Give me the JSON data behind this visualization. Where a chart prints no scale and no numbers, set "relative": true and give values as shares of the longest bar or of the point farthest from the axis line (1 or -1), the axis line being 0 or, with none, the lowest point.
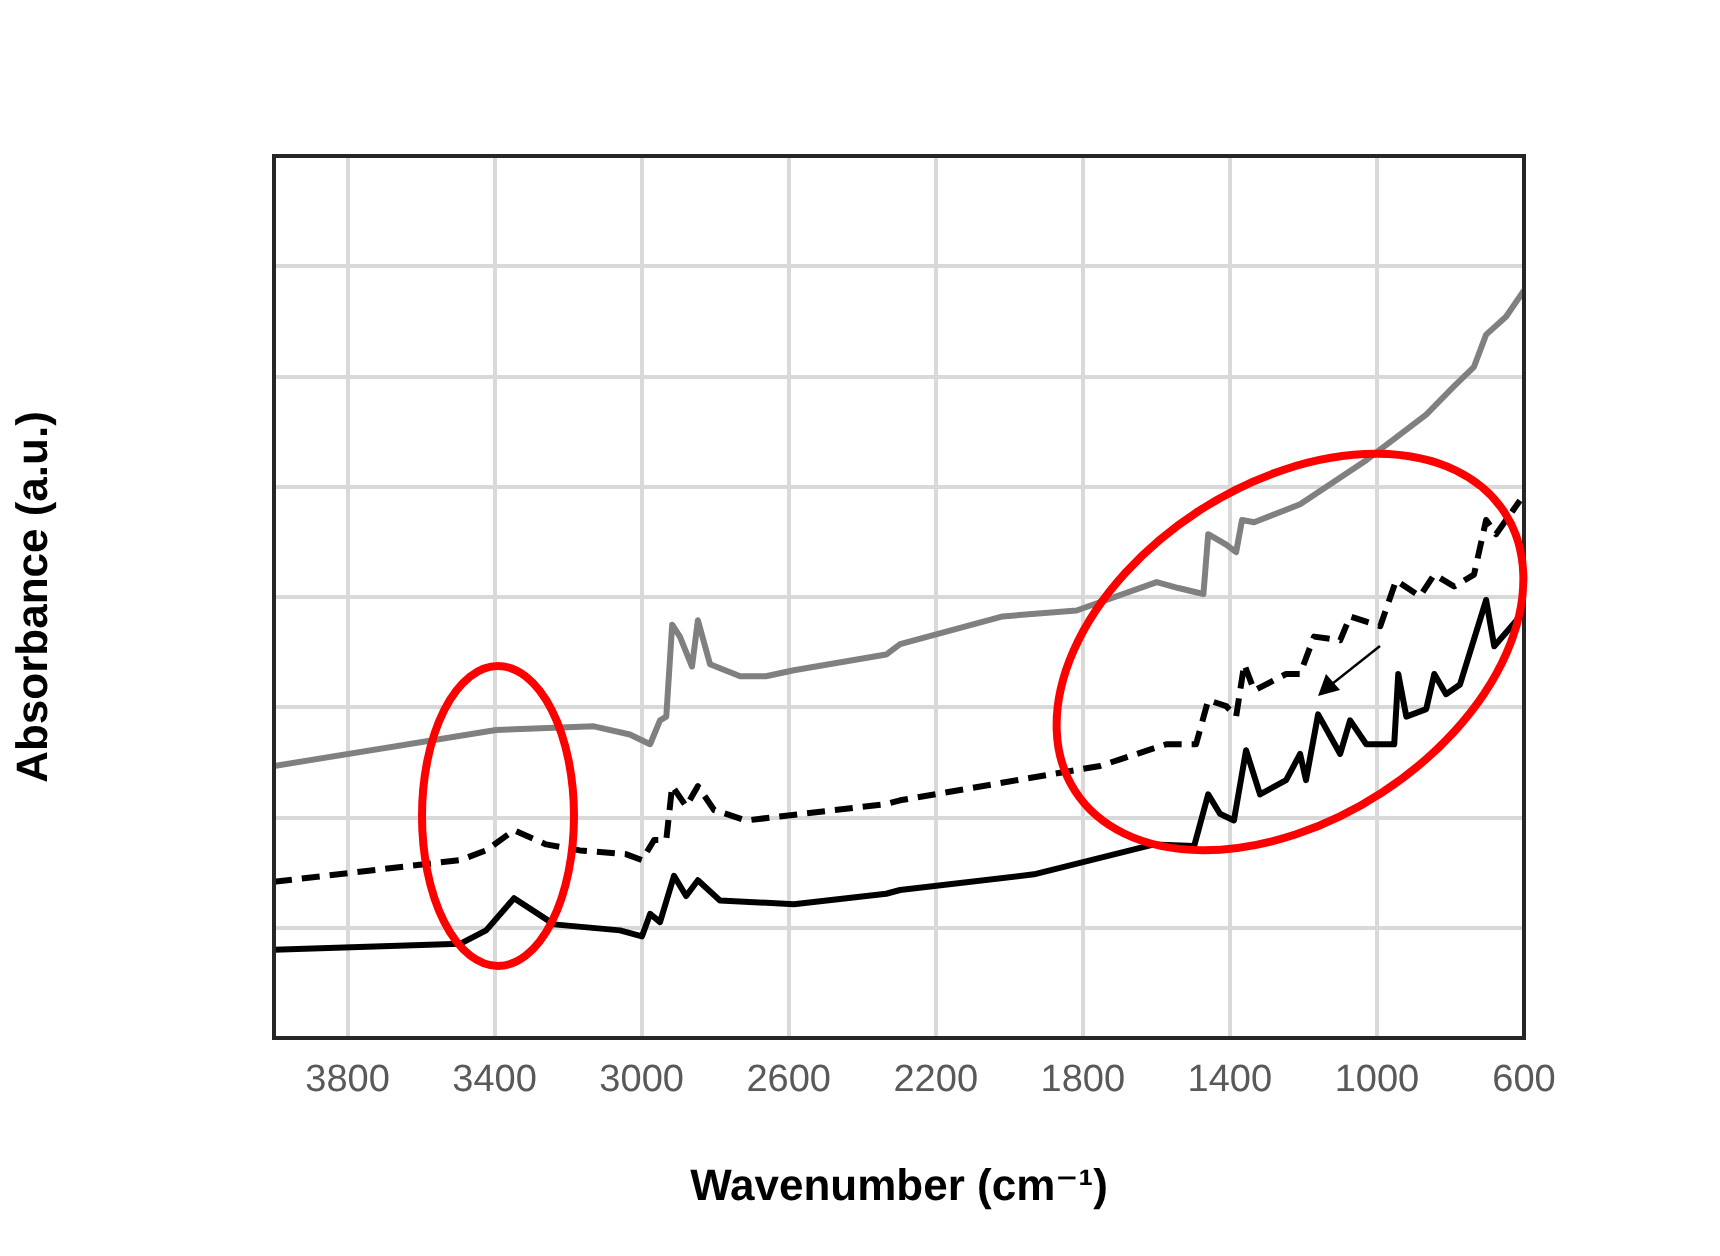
{
  "chart_data": {
    "type": "line",
    "xlabel": "Wavenumber (cm⁻¹)",
    "ylabel": "Absorbance (a.u.)",
    "relative": true,
    "grid": true,
    "marker": "none",
    "xlim": [
      4000,
      600
    ],
    "xticks": [
      3800,
      3400,
      3000,
      2600,
      2200,
      1800,
      1400,
      1000,
      600
    ],
    "series": [
      {
        "color": "#808080",
        "line_style": "solid",
        "x": [
          4000,
          3396,
          3130,
          3032,
          2977,
          2950,
          2933,
          2917,
          2896,
          2863,
          2847,
          2814,
          2732,
          2662,
          2586,
          2335,
          2297,
          2018,
          1817,
          1599,
          1540,
          1472,
          1459,
          1410,
          1383,
          1367,
          1334,
          1209,
          1029,
          866,
          790,
          736,
          703,
          649,
          600
        ],
        "values": [
          0.364,
          0.412,
          0.417,
          0.406,
          0.393,
          0.425,
          0.43,
          0.553,
          0.537,
          0.497,
          0.559,
          0.5,
          0.484,
          0.484,
          0.492,
          0.513,
          0.527,
          0.564,
          0.572,
          0.61,
          0.602,
          0.594,
          0.674,
          0.66,
          0.65,
          0.693,
          0.69,
          0.714,
          0.773,
          0.834,
          0.872,
          0.898,
          0.941,
          0.965,
          1
        ]
      },
      {
        "color": "#000000",
        "line_style": "dashed",
        "x": [
          4000,
          3494,
          3423,
          3347,
          3260,
          3168,
          3043,
          2999,
          2966,
          2933,
          2917,
          2879,
          2847,
          2803,
          2716,
          2335,
          2297,
          1753,
          1573,
          1492,
          1459,
          1410,
          1383,
          1361,
          1334,
          1247,
          1209,
          1171,
          1100,
          1073,
          991,
          948,
          883,
          844,
          790,
          736,
          703,
          676,
          611
        ],
        "values": [
          0.209,
          0.238,
          0.251,
          0.278,
          0.259,
          0.251,
          0.246,
          0.238,
          0.265,
          0.265,
          0.337,
          0.31,
          0.337,
          0.305,
          0.291,
          0.313,
          0.318,
          0.364,
          0.393,
          0.393,
          0.452,
          0.444,
          0.43,
          0.5,
          0.465,
          0.487,
          0.487,
          0.537,
          0.532,
          0.564,
          0.551,
          0.612,
          0.591,
          0.62,
          0.604,
          0.62,
          0.693,
          0.674,
          0.719
        ]
      },
      {
        "color": "#000000",
        "line_style": "solid",
        "x": [
          4000,
          3494,
          3423,
          3347,
          3238,
          3059,
          2999,
          2977,
          2950,
          2912,
          2879,
          2847,
          2787,
          2586,
          2335,
          2297,
          1933,
          1606,
          1497,
          1459,
          1427,
          1389,
          1356,
          1318,
          1247,
          1209,
          1193,
          1160,
          1100,
          1073,
          1029,
          953,
          942,
          920,
          866,
          844,
          812,
          774,
          703,
          681,
          611
        ],
        "values": [
          0.118,
          0.126,
          0.144,
          0.187,
          0.152,
          0.144,
          0.136,
          0.166,
          0.155,
          0.217,
          0.19,
          0.211,
          0.184,
          0.179,
          0.193,
          0.198,
          0.219,
          0.259,
          0.257,
          0.326,
          0.3,
          0.291,
          0.385,
          0.326,
          0.345,
          0.38,
          0.345,
          0.433,
          0.38,
          0.425,
          0.393,
          0.393,
          0.487,
          0.43,
          0.44,
          0.487,
          0.46,
          0.473,
          0.586,
          0.524,
          0.564
        ]
      }
    ]
  }
}
